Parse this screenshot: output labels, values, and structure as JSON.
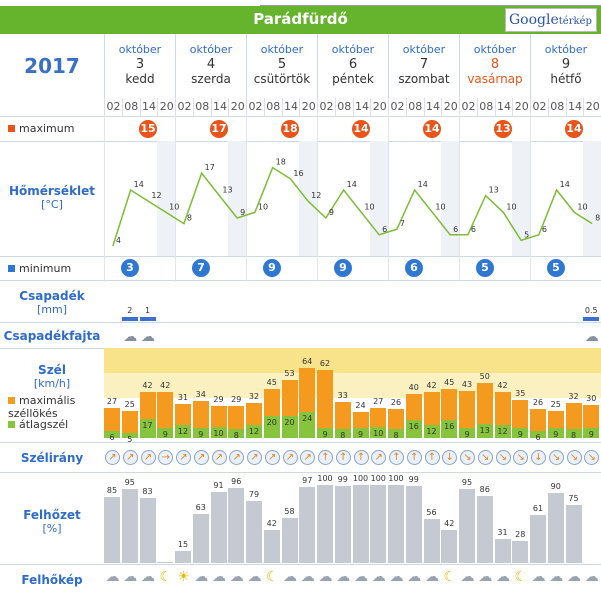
{
  "title": "Parádfürdő",
  "map_link": {
    "logo": "Google",
    "suffix": "térkép"
  },
  "year": "2017",
  "days": [
    {
      "month": "október",
      "day": "3",
      "weekday": "kedd"
    },
    {
      "month": "október",
      "day": "4",
      "weekday": "szerda"
    },
    {
      "month": "október",
      "day": "5",
      "weekday": "csütörtök"
    },
    {
      "month": "október",
      "day": "6",
      "weekday": "péntek"
    },
    {
      "month": "október",
      "day": "7",
      "weekday": "szombat"
    },
    {
      "month": "október",
      "day": "8",
      "weekday": "vasárnap",
      "sunday": true
    },
    {
      "month": "október",
      "day": "9",
      "weekday": "hétfő"
    }
  ],
  "hours": [
    "02",
    "08",
    "14",
    "20"
  ],
  "labels": {
    "maximum": "maximum",
    "temp": "Hőmérséklet",
    "temp_unit": "[°C]",
    "minimum": "minimum",
    "precip": "Csapadék",
    "precip_unit": "[mm]",
    "precip_type": "Csapadékfajta",
    "wind": "Szél",
    "wind_unit": "[km/h]",
    "gust": "maximális széllökés",
    "avg": "átlagszél",
    "direction": "Szélirány",
    "cloud": "Felhőzet",
    "cloud_unit": "[%]",
    "cloud_img": "Felhőkép"
  },
  "colors": {
    "max": "#e8541a",
    "min": "#2f78d2",
    "line": "#7cbd34",
    "gust": "#f39a1f",
    "avg": "#86c43e",
    "green": "#66b32e"
  },
  "max_values": [
    "15",
    "17",
    "18",
    "14",
    "14",
    "13",
    "14"
  ],
  "min_values": [
    "3",
    "7",
    "9",
    "9",
    "6",
    "5",
    "5"
  ],
  "temps": [
    4,
    14,
    12,
    10,
    8,
    17,
    13,
    9,
    10,
    18,
    16,
    12,
    9,
    14,
    10,
    6,
    7,
    14,
    10,
    6,
    6,
    13,
    10,
    5,
    6,
    14,
    10,
    8
  ],
  "precip": [
    {
      "idx": 1,
      "value": "2"
    },
    {
      "idx": 2,
      "value": "1"
    },
    {
      "idx": 27,
      "value": "0.5"
    }
  ],
  "gusts": [
    27,
    25,
    42,
    42,
    31,
    34,
    29,
    29,
    32,
    45,
    53,
    64,
    62,
    33,
    24,
    27,
    26,
    40,
    42,
    45,
    43,
    50,
    42,
    35,
    26,
    25,
    32,
    30
  ],
  "avg": [
    6,
    5,
    17,
    9,
    12,
    9,
    10,
    8,
    12,
    20,
    20,
    24,
    9,
    8,
    9,
    10,
    8,
    16,
    12,
    16,
    9,
    13,
    12,
    9,
    6,
    9,
    8,
    9
  ],
  "clouds": [
    85,
    95,
    83,
    0,
    15,
    63,
    91,
    96,
    79,
    42,
    58,
    97,
    100,
    99,
    100,
    100,
    100,
    99,
    56,
    42,
    95,
    86,
    31,
    28,
    61,
    90,
    75,
    null
  ]
}
